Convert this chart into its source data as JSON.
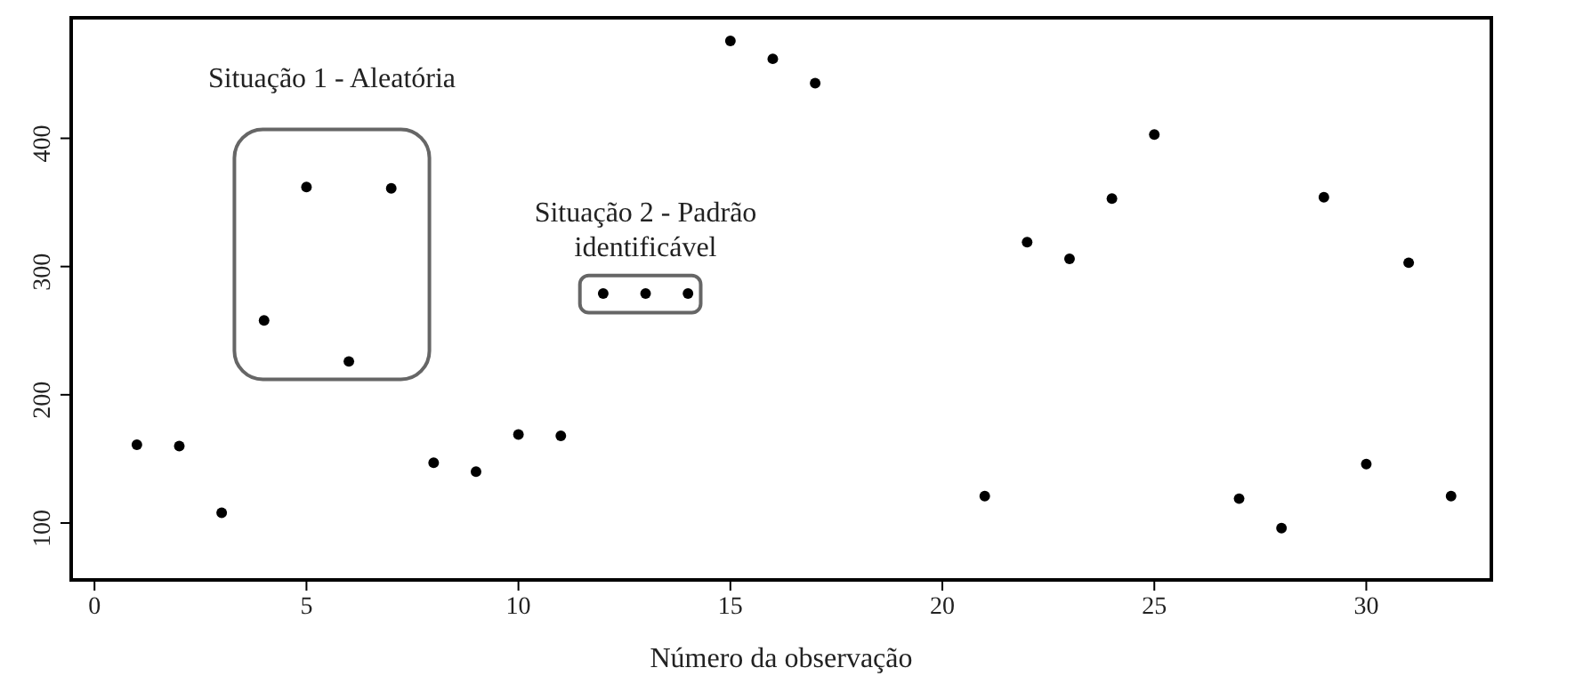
{
  "chart_data": {
    "type": "scatter",
    "xlabel": "Número da observação",
    "x": [
      1,
      2,
      3,
      4,
      5,
      6,
      7,
      8,
      9,
      10,
      11,
      12,
      13,
      14,
      15,
      16,
      17,
      21,
      22,
      23,
      24,
      25,
      27,
      28,
      29,
      30,
      31,
      32
    ],
    "values": [
      161,
      160,
      108,
      258,
      362,
      226,
      361,
      147,
      140,
      169,
      168,
      279,
      279,
      279,
      476,
      462,
      443,
      121,
      319,
      306,
      353,
      403,
      119,
      96,
      354,
      146,
      303,
      121
    ],
    "color": "#000000",
    "marker": "circle",
    "xlim": [
      -0.55,
      32.95
    ],
    "xticks": [
      0,
      5,
      10,
      15,
      20,
      25,
      30
    ],
    "ylim": [
      55.6,
      494
    ],
    "yticks": [
      100,
      200,
      300,
      400
    ],
    "annotations": [
      "Situação 1 - Aleatória",
      "Situação 2 - Padrão identificável"
    ]
  }
}
